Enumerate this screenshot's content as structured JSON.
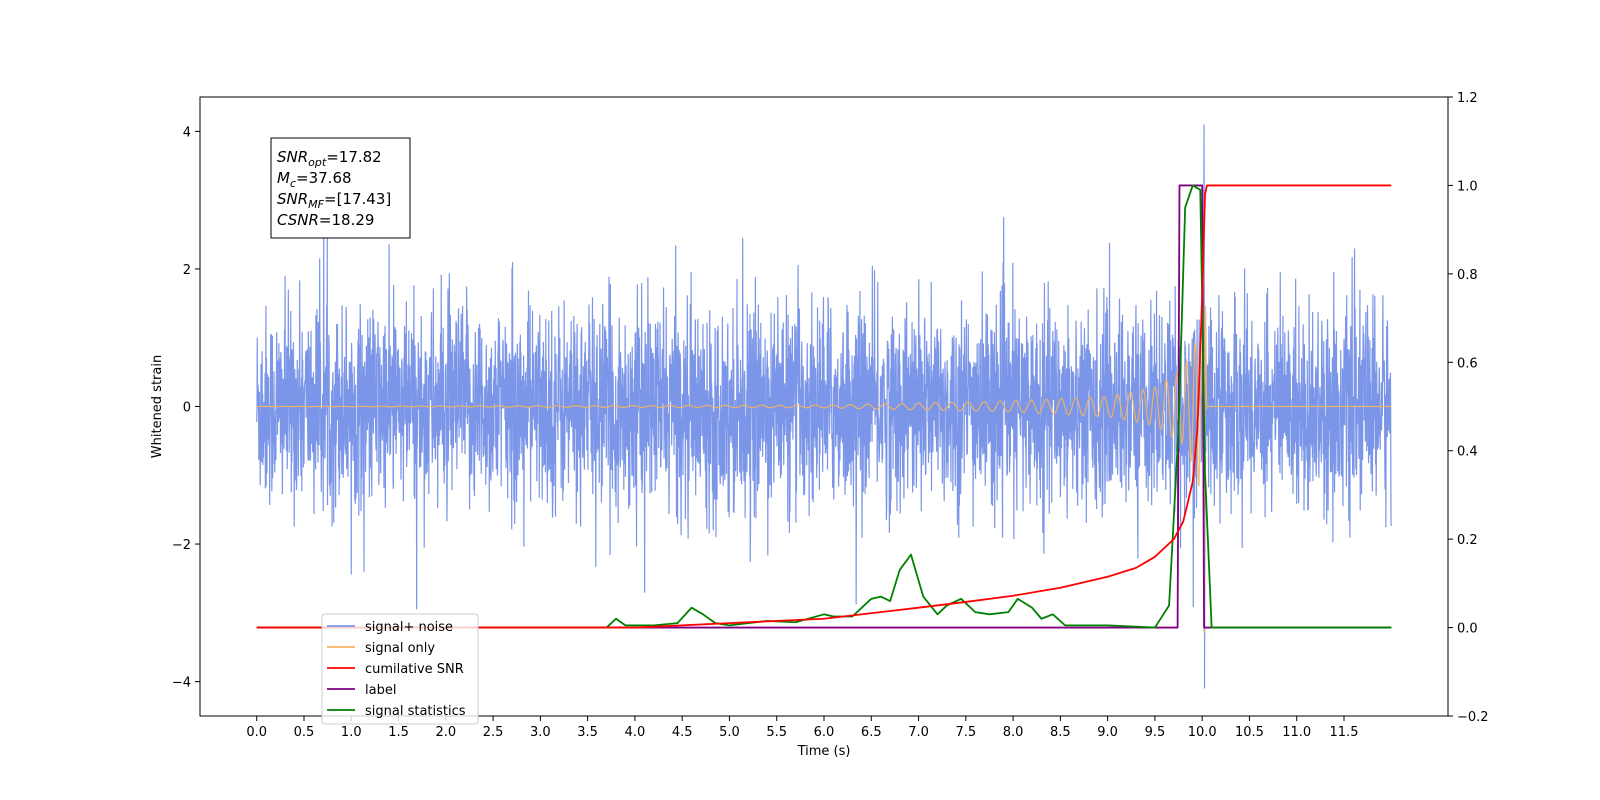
{
  "chart_data": {
    "type": "line",
    "title": "",
    "xlabel": "Time (s)",
    "ylabel": "Whitened strain",
    "xlim": [
      -0.6,
      12.6
    ],
    "ylim": [
      -4.5,
      4.5
    ],
    "ylim_right": [
      -0.2,
      1.2
    ],
    "x_ticks": [
      "0.0",
      "0.5",
      "1.0",
      "1.5",
      "2.0",
      "2.5",
      "3.0",
      "3.5",
      "4.0",
      "4.5",
      "5.0",
      "5.5",
      "6.0",
      "6.5",
      "7.0",
      "7.5",
      "8.0",
      "8.5",
      "9.0",
      "9.5",
      "10.0",
      "10.5",
      "11.0",
      "11.5"
    ],
    "y_ticks_left": [
      "4",
      "2",
      "0",
      "−2",
      "−4"
    ],
    "y_ticks_right": [
      "1.2",
      "1.0",
      "0.8",
      "0.6",
      "0.4",
      "0.2",
      "0.0",
      "−0.2"
    ],
    "legend_position": "lower-left",
    "annotation": {
      "lines": [
        {
          "var": "SNR",
          "sub": "opt",
          "value": "=17.82"
        },
        {
          "var": "M",
          "sub": "c",
          "value": "=37.68"
        },
        {
          "var": "SNR",
          "sub": "MF",
          "value": "=[17.43]"
        },
        {
          "var": "CSNR",
          "sub": "",
          "value": "=18.29"
        }
      ]
    },
    "series": [
      {
        "name": "signal+ noise",
        "axis": "left",
        "color": "#7b96e8",
        "style": "noise",
        "x_range": [
          0.0,
          12.0
        ],
        "amplitude_typical": 1.1,
        "peak_max": 4.1,
        "peak_min": -4.1,
        "peak_time": 10.02
      },
      {
        "name": "signal only",
        "axis": "left",
        "color": "#f5b55e",
        "style": "chirp",
        "x": [
          0.0,
          6.0,
          8.0,
          9.0,
          9.5,
          9.8,
          9.95,
          10.0,
          10.02,
          10.05,
          12.0
        ],
        "envelope": [
          0.0,
          0.02,
          0.08,
          0.15,
          0.28,
          0.55,
          1.0,
          1.6,
          3.3,
          0.0,
          0.0
        ]
      },
      {
        "name": "cumilative SNR",
        "axis": "right",
        "color": "#ff0000",
        "x": [
          0.0,
          4.0,
          5.0,
          6.0,
          7.0,
          7.5,
          8.0,
          8.5,
          9.0,
          9.3,
          9.5,
          9.7,
          9.8,
          9.9,
          9.95,
          10.0,
          10.03,
          10.05,
          12.0
        ],
        "values": [
          0.0,
          0.0,
          0.01,
          0.02,
          0.045,
          0.058,
          0.072,
          0.09,
          0.115,
          0.135,
          0.16,
          0.2,
          0.24,
          0.33,
          0.45,
          0.75,
          0.98,
          1.0,
          1.0
        ]
      },
      {
        "name": "label",
        "axis": "right",
        "color": "#800080",
        "x": [
          0.0,
          9.74,
          9.76,
          10.0,
          10.02,
          12.0
        ],
        "values": [
          0.0,
          0.0,
          1.0,
          1.0,
          0.0,
          0.0
        ]
      },
      {
        "name": "signal statistics",
        "axis": "right",
        "color": "#008000",
        "x": [
          0.0,
          3.7,
          3.8,
          3.9,
          4.2,
          4.45,
          4.6,
          4.72,
          4.85,
          5.0,
          5.2,
          5.4,
          5.7,
          6.0,
          6.1,
          6.3,
          6.5,
          6.6,
          6.7,
          6.8,
          6.92,
          7.05,
          7.2,
          7.3,
          7.45,
          7.6,
          7.75,
          7.95,
          8.05,
          8.2,
          8.3,
          8.42,
          8.55,
          9.0,
          9.5,
          9.65,
          9.75,
          9.82,
          9.9,
          9.98,
          10.03,
          10.1,
          12.0
        ],
        "values": [
          0.0,
          0.0,
          0.02,
          0.005,
          0.005,
          0.01,
          0.045,
          0.03,
          0.01,
          0.005,
          0.01,
          0.015,
          0.012,
          0.03,
          0.025,
          0.025,
          0.065,
          0.07,
          0.06,
          0.13,
          0.165,
          0.07,
          0.03,
          0.05,
          0.065,
          0.035,
          0.03,
          0.035,
          0.065,
          0.045,
          0.02,
          0.03,
          0.005,
          0.005,
          0.0,
          0.05,
          0.45,
          0.95,
          1.0,
          0.99,
          0.35,
          0.0,
          0.0
        ]
      }
    ]
  }
}
